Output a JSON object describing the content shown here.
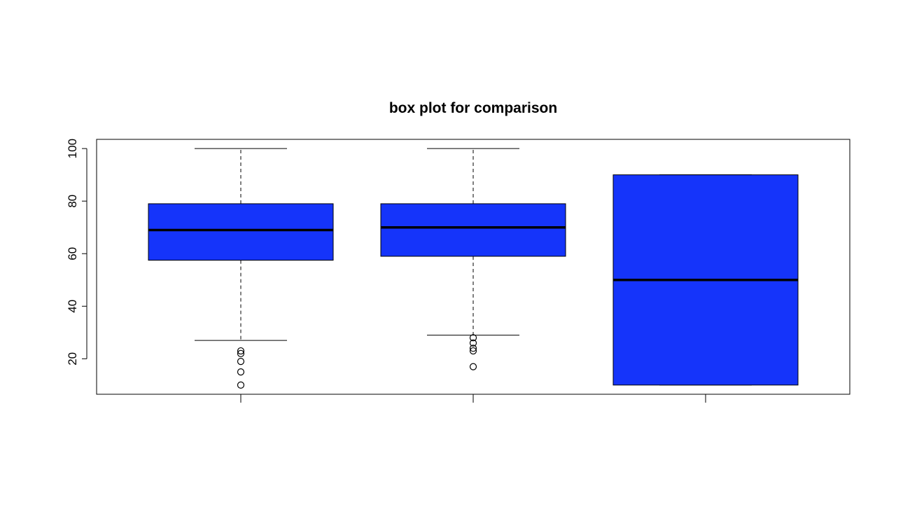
{
  "chart_data": {
    "type": "boxplot",
    "title": "box plot for comparison",
    "xlabel": "",
    "ylabel": "",
    "ylim": [
      6.5,
      103.5
    ],
    "yticks": [
      20,
      40,
      60,
      80,
      100
    ],
    "colors": {
      "box_fill": "#1534FA",
      "stroke": "#000000",
      "background": "#FFFFFF"
    },
    "grid": false,
    "series": [
      {
        "min": 27,
        "q1": 57.5,
        "median": 69,
        "q3": 79,
        "max": 100,
        "outliers": [
          23,
          22,
          19,
          15,
          10
        ]
      },
      {
        "min": 29,
        "q1": 59,
        "median": 70,
        "q3": 79,
        "max": 100,
        "outliers": [
          28,
          26,
          24,
          23,
          17
        ]
      },
      {
        "min": 10,
        "q1": 10,
        "median": 50,
        "q3": 90,
        "max": 90,
        "outliers": []
      }
    ]
  }
}
